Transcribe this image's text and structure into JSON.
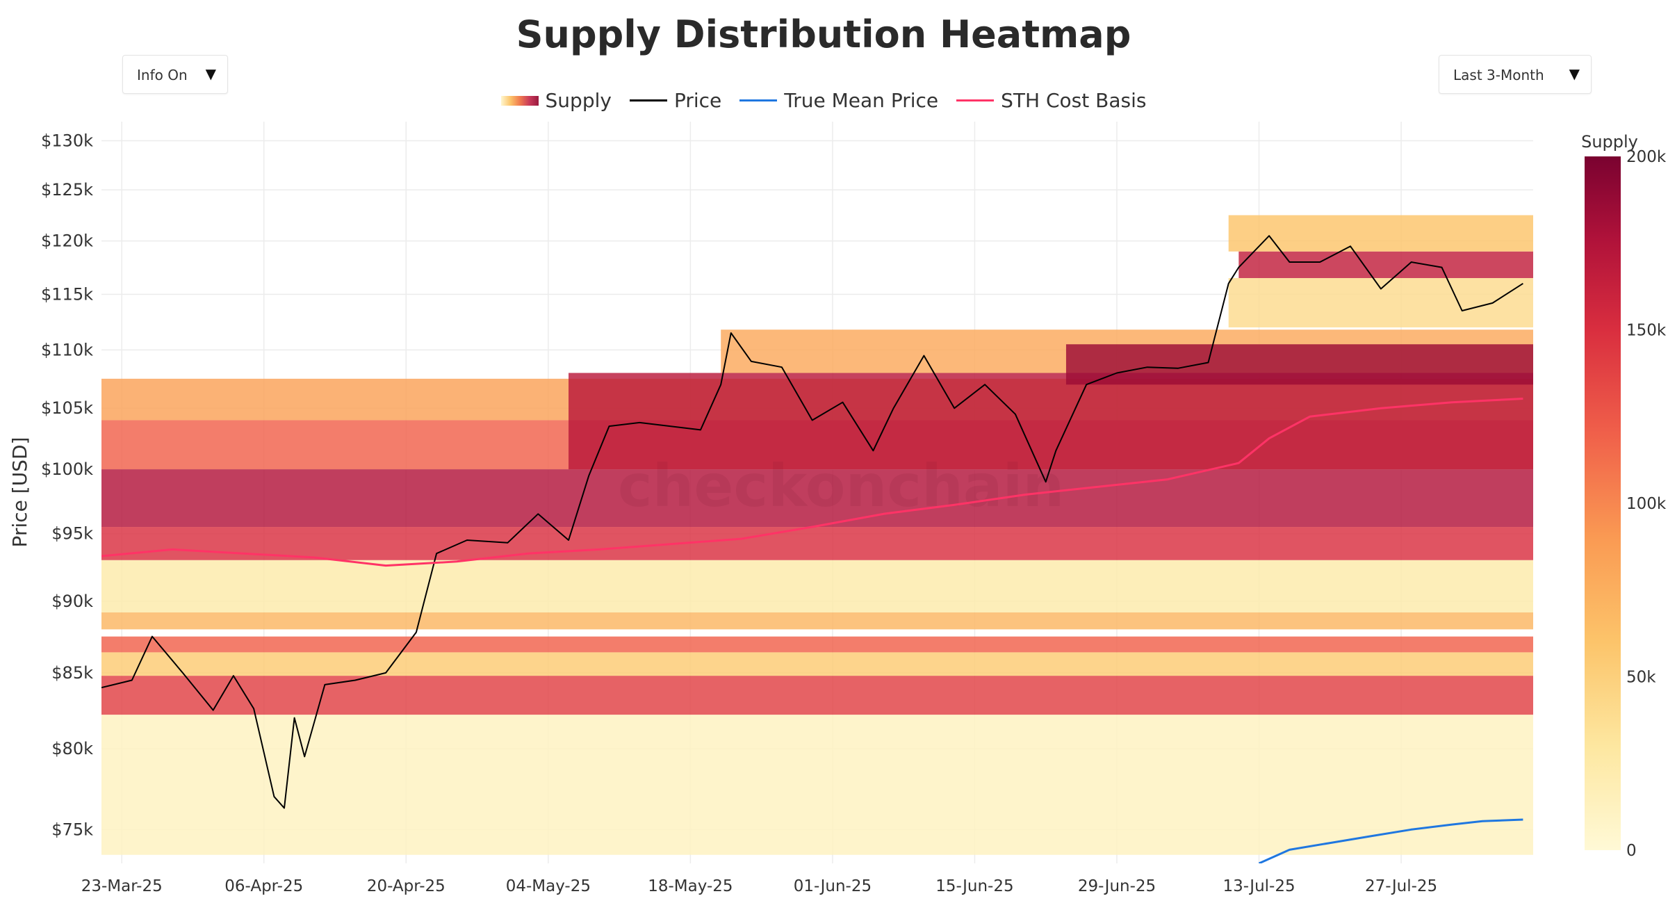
{
  "page": {
    "title": "Supply Distribution Heatmap",
    "watermark": "checkonchain"
  },
  "controls": {
    "info_toggle": {
      "label": "Info On",
      "caret": "▼"
    },
    "range_select": {
      "label": "Last 3-Month",
      "caret": "▼"
    }
  },
  "legend": {
    "supply": "Supply",
    "price": "Price",
    "true_mean": "True Mean Price",
    "sth": "STH Cost Basis"
  },
  "colors": {
    "price": "#000000",
    "true_mean": "#1f77e0",
    "sth": "#ff3366",
    "heat_low": "#fff7d0",
    "heat_mid": "#fcc46a",
    "heat_high": "#f07b4f",
    "heat_top": "#9b1a3f"
  },
  "chart_data": {
    "type": "heatmap",
    "title": "Supply Distribution Heatmap",
    "ylabel": "Price [USD]",
    "xlabel": "",
    "yscale": "log",
    "ylim": [
      73000,
      132000
    ],
    "x_range": [
      "2025-03-21",
      "2025-08-09"
    ],
    "y_ticks": [
      75000,
      80000,
      85000,
      90000,
      95000,
      100000,
      105000,
      110000,
      115000,
      120000,
      125000,
      130000
    ],
    "y_tick_labels": [
      "$75k",
      "$80k",
      "$85k",
      "$90k",
      "$95k",
      "$100k",
      "$105k",
      "$110k",
      "$115k",
      "$120k",
      "$125k",
      "$130k"
    ],
    "x_ticks": [
      "2025-03-23",
      "2025-04-06",
      "2025-04-20",
      "2025-05-04",
      "2025-05-18",
      "2025-06-01",
      "2025-06-15",
      "2025-06-29",
      "2025-07-13",
      "2025-07-27"
    ],
    "x_tick_labels": [
      "23-Mar-25",
      "06-Apr-25",
      "20-Apr-25",
      "04-May-25",
      "18-May-25",
      "01-Jun-25",
      "15-Jun-25",
      "29-Jun-25",
      "13-Jul-25",
      "27-Jul-25"
    ],
    "colorbar": {
      "title": "Supply",
      "min": 0,
      "max": 200000,
      "ticks": [
        0,
        50000,
        100000,
        150000,
        200000
      ],
      "tick_labels": [
        "0",
        "50k",
        "100k",
        "150k",
        "200k"
      ]
    },
    "series": [
      {
        "name": "Price",
        "color": "#000000",
        "x": [
          "2025-03-21",
          "2025-03-24",
          "2025-03-26",
          "2025-03-29",
          "2025-04-01",
          "2025-04-03",
          "2025-04-05",
          "2025-04-07",
          "2025-04-08",
          "2025-04-09",
          "2025-04-10",
          "2025-04-12",
          "2025-04-15",
          "2025-04-18",
          "2025-04-21",
          "2025-04-23",
          "2025-04-26",
          "2025-04-30",
          "2025-05-03",
          "2025-05-06",
          "2025-05-08",
          "2025-05-10",
          "2025-05-13",
          "2025-05-16",
          "2025-05-19",
          "2025-05-21",
          "2025-05-22",
          "2025-05-24",
          "2025-05-27",
          "2025-05-30",
          "2025-06-02",
          "2025-06-05",
          "2025-06-07",
          "2025-06-10",
          "2025-06-13",
          "2025-06-16",
          "2025-06-19",
          "2025-06-22",
          "2025-06-23",
          "2025-06-26",
          "2025-06-29",
          "2025-07-02",
          "2025-07-05",
          "2025-07-08",
          "2025-07-10",
          "2025-07-11",
          "2025-07-14",
          "2025-07-16",
          "2025-07-19",
          "2025-07-22",
          "2025-07-25",
          "2025-07-28",
          "2025-07-31",
          "2025-08-02",
          "2025-08-05",
          "2025-08-08"
        ],
        "y": [
          84000,
          84500,
          87500,
          85000,
          82500,
          84800,
          82600,
          77000,
          76300,
          82000,
          79500,
          84200,
          84500,
          85000,
          87800,
          93500,
          94500,
          94300,
          96500,
          94500,
          99500,
          103500,
          103800,
          103500,
          103200,
          107000,
          111500,
          109000,
          108500,
          104000,
          105500,
          101500,
          105000,
          109500,
          105000,
          107000,
          104500,
          99000,
          101500,
          107000,
          108000,
          108500,
          108400,
          108900,
          116000,
          117500,
          120500,
          118000,
          118000,
          119500,
          115500,
          118000,
          117500,
          113500,
          114200,
          116000
        ]
      },
      {
        "name": "STH Cost Basis",
        "color": "#ff3366",
        "x": [
          "2025-03-21",
          "2025-03-28",
          "2025-04-04",
          "2025-04-11",
          "2025-04-18",
          "2025-04-25",
          "2025-05-02",
          "2025-05-09",
          "2025-05-16",
          "2025-05-23",
          "2025-05-30",
          "2025-06-06",
          "2025-06-13",
          "2025-06-20",
          "2025-06-27",
          "2025-07-04",
          "2025-07-11",
          "2025-07-14",
          "2025-07-18",
          "2025-07-25",
          "2025-08-01",
          "2025-08-08"
        ],
        "y": [
          93300,
          93800,
          93500,
          93200,
          92600,
          92900,
          93500,
          93800,
          94200,
          94600,
          95500,
          96500,
          97200,
          98000,
          98600,
          99200,
          100500,
          102500,
          104300,
          105000,
          105500,
          105800
        ]
      },
      {
        "name": "True Mean Price",
        "color": "#1f77e0",
        "x": [
          "2025-07-13",
          "2025-07-16",
          "2025-07-20",
          "2025-07-24",
          "2025-07-28",
          "2025-08-01",
          "2025-08-04",
          "2025-08-08"
        ],
        "y": [
          73000,
          73800,
          74200,
          74600,
          75000,
          75300,
          75500,
          75600
        ]
      }
    ],
    "supply_bands": [
      {
        "from": "2025-03-21",
        "to": "2025-08-09",
        "low": 95500,
        "high": 100000,
        "supply": 175000
      },
      {
        "from": "2025-03-21",
        "to": "2025-08-09",
        "low": 93000,
        "high": 95500,
        "supply": 150000
      },
      {
        "from": "2025-03-21",
        "to": "2025-08-09",
        "low": 82200,
        "high": 84800,
        "supply": 140000
      },
      {
        "from": "2025-03-21",
        "to": "2025-08-09",
        "low": 86400,
        "high": 87500,
        "supply": 120000
      },
      {
        "from": "2025-03-21",
        "to": "2025-08-09",
        "low": 88000,
        "high": 89200,
        "supply": 70000
      },
      {
        "from": "2025-03-21",
        "to": "2025-08-09",
        "low": 100000,
        "high": 104000,
        "supply": 120000
      },
      {
        "from": "2025-03-21",
        "to": "2025-08-09",
        "low": 104000,
        "high": 107500,
        "supply": 85000
      },
      {
        "from": "2025-03-21",
        "to": "2025-08-09",
        "low": 84800,
        "high": 86400,
        "supply": 55000
      },
      {
        "from": "2025-03-21",
        "to": "2025-08-09",
        "low": 89200,
        "high": 93000,
        "supply": 25000
      },
      {
        "from": "2025-03-21",
        "to": "2025-08-09",
        "low": 73500,
        "high": 82200,
        "supply": 12000
      },
      {
        "from": "2025-05-06",
        "to": "2025-08-09",
        "low": 100000,
        "high": 108000,
        "supply": 170000
      },
      {
        "from": "2025-05-21",
        "to": "2025-08-09",
        "low": 108000,
        "high": 111800,
        "supply": 80000
      },
      {
        "from": "2025-06-24",
        "to": "2025-08-09",
        "low": 107000,
        "high": 110500,
        "supply": 185000
      },
      {
        "from": "2025-07-11",
        "to": "2025-08-09",
        "low": 116500,
        "high": 119000,
        "supply": 165000
      },
      {
        "from": "2025-07-10",
        "to": "2025-08-09",
        "low": 119000,
        "high": 122500,
        "supply": 60000
      },
      {
        "from": "2025-07-10",
        "to": "2025-08-09",
        "low": 112000,
        "high": 116500,
        "supply": 40000
      }
    ]
  }
}
